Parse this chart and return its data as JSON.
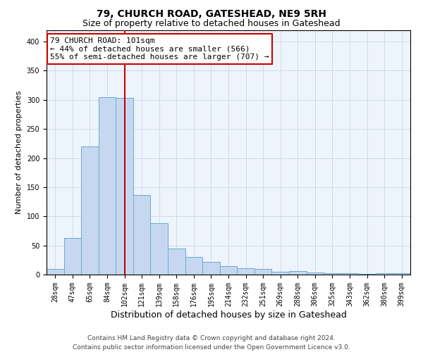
{
  "title": "79, CHURCH ROAD, GATESHEAD, NE9 5RH",
  "subtitle": "Size of property relative to detached houses in Gateshead",
  "xlabel": "Distribution of detached houses by size in Gateshead",
  "ylabel": "Number of detached properties",
  "categories": [
    "28sqm",
    "47sqm",
    "65sqm",
    "84sqm",
    "102sqm",
    "121sqm",
    "139sqm",
    "158sqm",
    "176sqm",
    "195sqm",
    "214sqm",
    "232sqm",
    "251sqm",
    "269sqm",
    "288sqm",
    "306sqm",
    "325sqm",
    "343sqm",
    "362sqm",
    "380sqm",
    "399sqm"
  ],
  "values": [
    10,
    63,
    220,
    305,
    303,
    137,
    88,
    45,
    30,
    22,
    14,
    11,
    10,
    5,
    6,
    4,
    2,
    2,
    1,
    3,
    3
  ],
  "bar_color": "#c5d8f0",
  "bar_edge_color": "#6aaad4",
  "vline_x_index": 4,
  "vline_color": "#cc0000",
  "annotation_title": "79 CHURCH ROAD: 101sqm",
  "annotation_line1": "← 44% of detached houses are smaller (566)",
  "annotation_line2": "55% of semi-detached houses are larger (707) →",
  "annotation_box_color": "#ffffff",
  "annotation_box_edge_color": "#cc0000",
  "ylim": [
    0,
    420
  ],
  "yticks": [
    0,
    50,
    100,
    150,
    200,
    250,
    300,
    350,
    400
  ],
  "grid_color": "#c8d8e8",
  "bg_color": "#eef4fb",
  "footer_line1": "Contains HM Land Registry data © Crown copyright and database right 2024.",
  "footer_line2": "Contains public sector information licensed under the Open Government Licence v3.0.",
  "title_fontsize": 10,
  "subtitle_fontsize": 9,
  "xlabel_fontsize": 9,
  "ylabel_fontsize": 8,
  "tick_fontsize": 7,
  "annotation_fontsize": 8,
  "footer_fontsize": 6.5
}
